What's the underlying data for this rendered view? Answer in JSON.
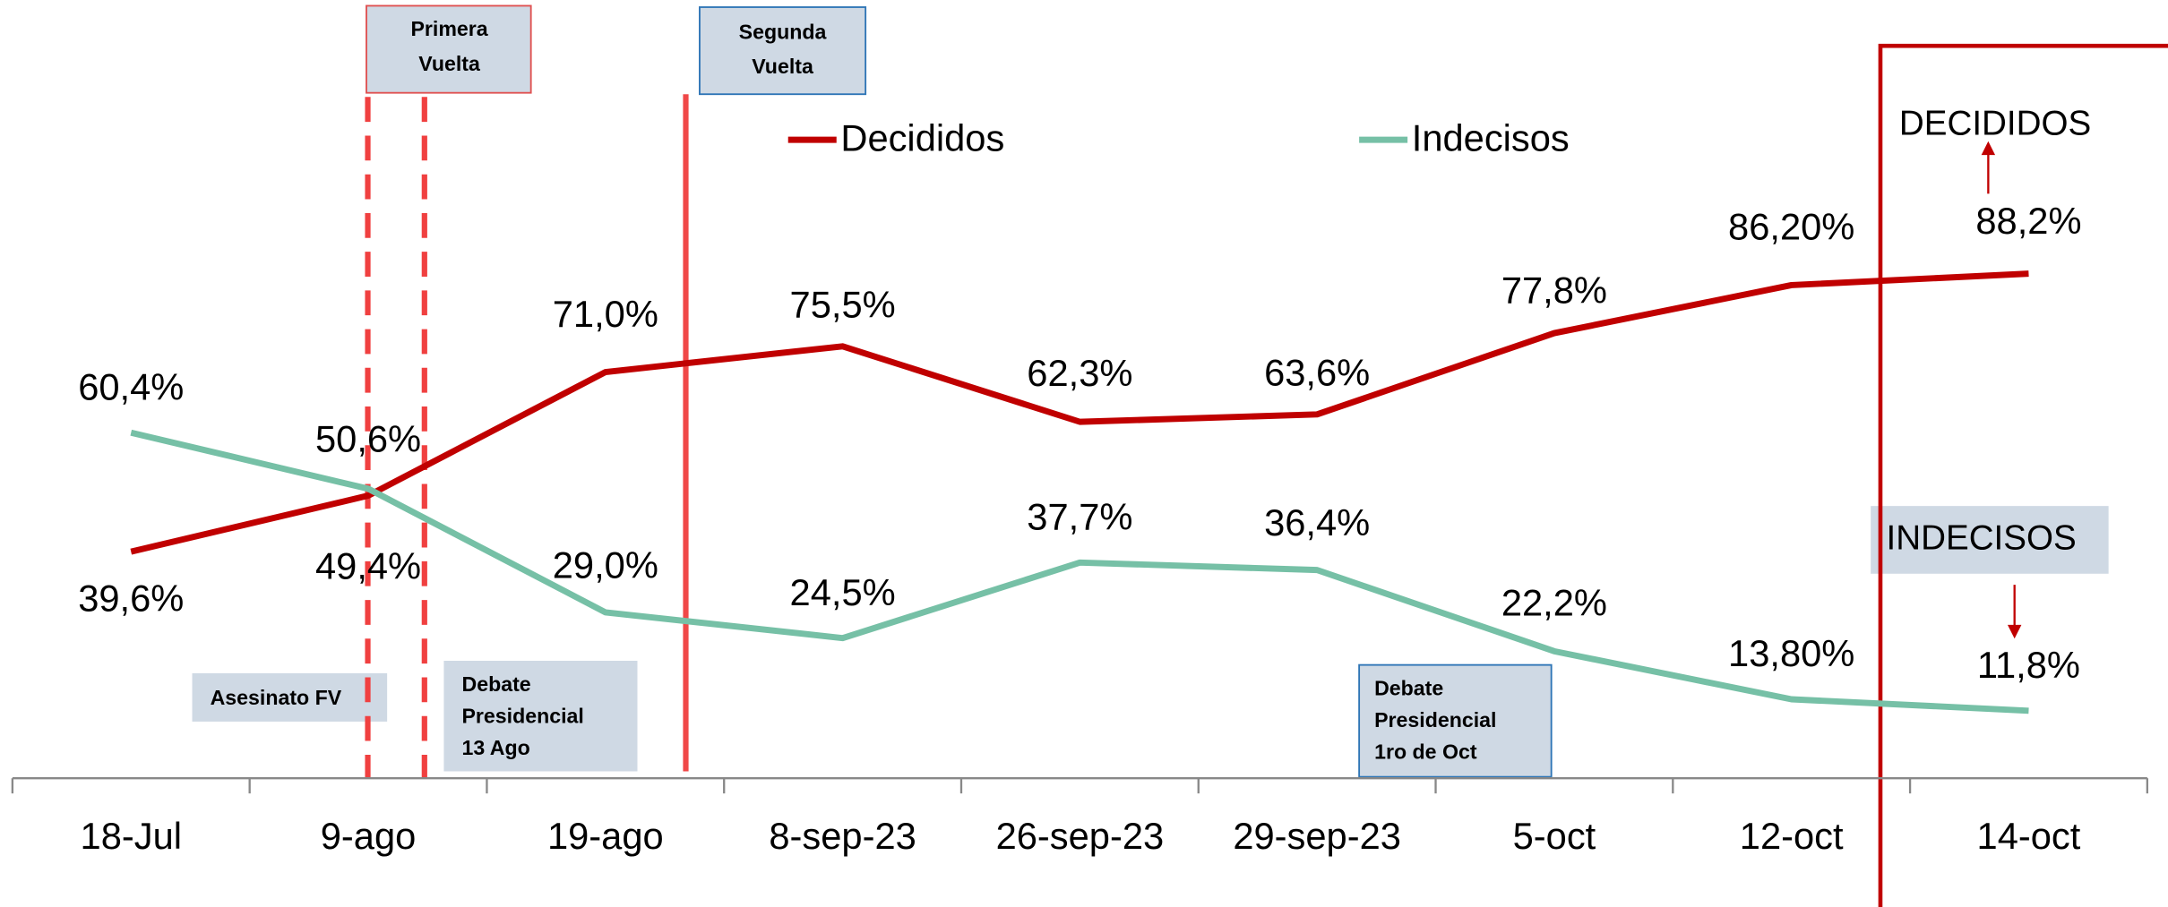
{
  "chart_data": {
    "type": "line",
    "categories": [
      "18-Jul",
      "9-ago",
      "19-ago",
      "8-sep-23",
      "26-sep-23",
      "29-sep-23",
      "5-oct",
      "12-oct",
      "14-oct"
    ],
    "series": [
      {
        "name": "Decididos",
        "color": "#c00000",
        "values": [
          39.6,
          49.4,
          71.0,
          75.5,
          62.3,
          63.6,
          77.8,
          86.2,
          88.2
        ],
        "value_labels": [
          "39,6%",
          "49,4%",
          "71,0%",
          "75,5%",
          "62,3%",
          "63,6%",
          "77,8%",
          "86,20%",
          "88,2%"
        ]
      },
      {
        "name": "Indecisos",
        "color": "#76c0a6",
        "values": [
          60.4,
          50.6,
          29.0,
          24.5,
          37.7,
          36.4,
          22.2,
          13.8,
          11.8
        ],
        "value_labels": [
          "60,4%",
          "50,6%",
          "29,0%",
          "24,5%",
          "37,7%",
          "36,4%",
          "22,2%",
          "13,80%",
          "11,8%"
        ]
      }
    ],
    "ylim": [
      0,
      100
    ],
    "annotations": [
      {
        "lines": [
          "Primera",
          "Vuelta"
        ]
      },
      {
        "lines": [
          "Segunda",
          "Vuelta"
        ]
      },
      {
        "lines": [
          "Asesinato FV"
        ]
      },
      {
        "lines": [
          "Debate",
          "Presidencial",
          "13 Ago"
        ]
      },
      {
        "lines": [
          "Debate",
          "Presidencial",
          "1ro de Oct"
        ]
      },
      {
        "lines": [
          "DECIDIDOS"
        ]
      },
      {
        "lines": [
          "INDECISOS"
        ]
      }
    ]
  }
}
